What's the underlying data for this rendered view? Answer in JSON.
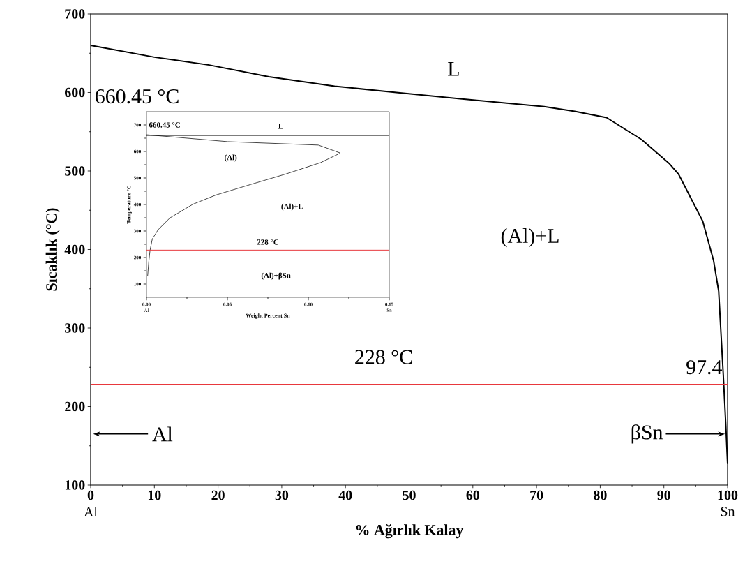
{
  "chart_data": [
    {
      "type": "line",
      "xlabel": "% Ağırlık Kalay",
      "ylabel": "Sıcaklık (°C)",
      "xlim": [
        0,
        100
      ],
      "ylim": [
        100,
        700
      ],
      "xticks": [
        0,
        10,
        20,
        30,
        40,
        50,
        60,
        70,
        80,
        90,
        100
      ],
      "yticks": [
        100,
        200,
        300,
        400,
        500,
        600,
        700
      ],
      "series": [
        {
          "color": "#000000",
          "x": [
            0,
            10,
            18.6,
            28,
            38.3,
            48,
            58,
            71.2,
            76,
            81,
            86.5,
            90.9,
            92.3,
            94.2,
            96.1,
            97.8,
            98.6,
            99.3,
            99.7,
            100
          ],
          "values": [
            660,
            645,
            635,
            620,
            608,
            600,
            592,
            582,
            576,
            568,
            540,
            509,
            496,
            466,
            436,
            386,
            347,
            244,
            180,
            127
          ]
        }
      ],
      "ref_lines": [
        {
          "axis": "y",
          "value": 228,
          "color": "#e8383d"
        }
      ],
      "annotations": [
        "660.45 °C",
        "L",
        "(Al)+L",
        "228 °C",
        "97.4",
        "Al",
        "βSn",
        "Al",
        "Sn"
      ]
    },
    {
      "type": "line",
      "xlabel": "Weight Percent Sn",
      "ylabel": "Temperature °C",
      "xlim": [
        0,
        0.15
      ],
      "ylim": [
        50,
        750
      ],
      "xticks": [
        {
          "value": 0,
          "label": "0.00"
        },
        0.05,
        {
          "value": 0.1,
          "label": "0.10"
        },
        0.15
      ],
      "yticks": [
        100,
        200,
        300,
        400,
        500,
        600,
        700
      ],
      "series": [
        {
          "color": "#444444",
          "x": [
            0,
            0.0502,
            0.1062,
            0.1198,
            0.1076,
            0.0861,
            0.0646,
            0.043,
            0.0287,
            0.0144,
            0.0072,
            0.0036,
            0.0022,
            0.0014,
            0.0007
          ],
          "values": [
            663,
            637,
            624,
            594,
            558,
            515,
            476,
            436,
            401,
            349,
            305,
            270,
            227,
            183,
            130
          ]
        }
      ],
      "ref_lines": [
        {
          "axis": "y",
          "value": 660.45,
          "color": "#000000"
        },
        {
          "axis": "y",
          "value": 228,
          "color": "#e8383d"
        }
      ],
      "annotations": [
        "660.45 °C",
        "L",
        "(Al)",
        "(Al)+L",
        "228 °C",
        "(Al)+βSn",
        "Al",
        "Sn"
      ]
    }
  ]
}
